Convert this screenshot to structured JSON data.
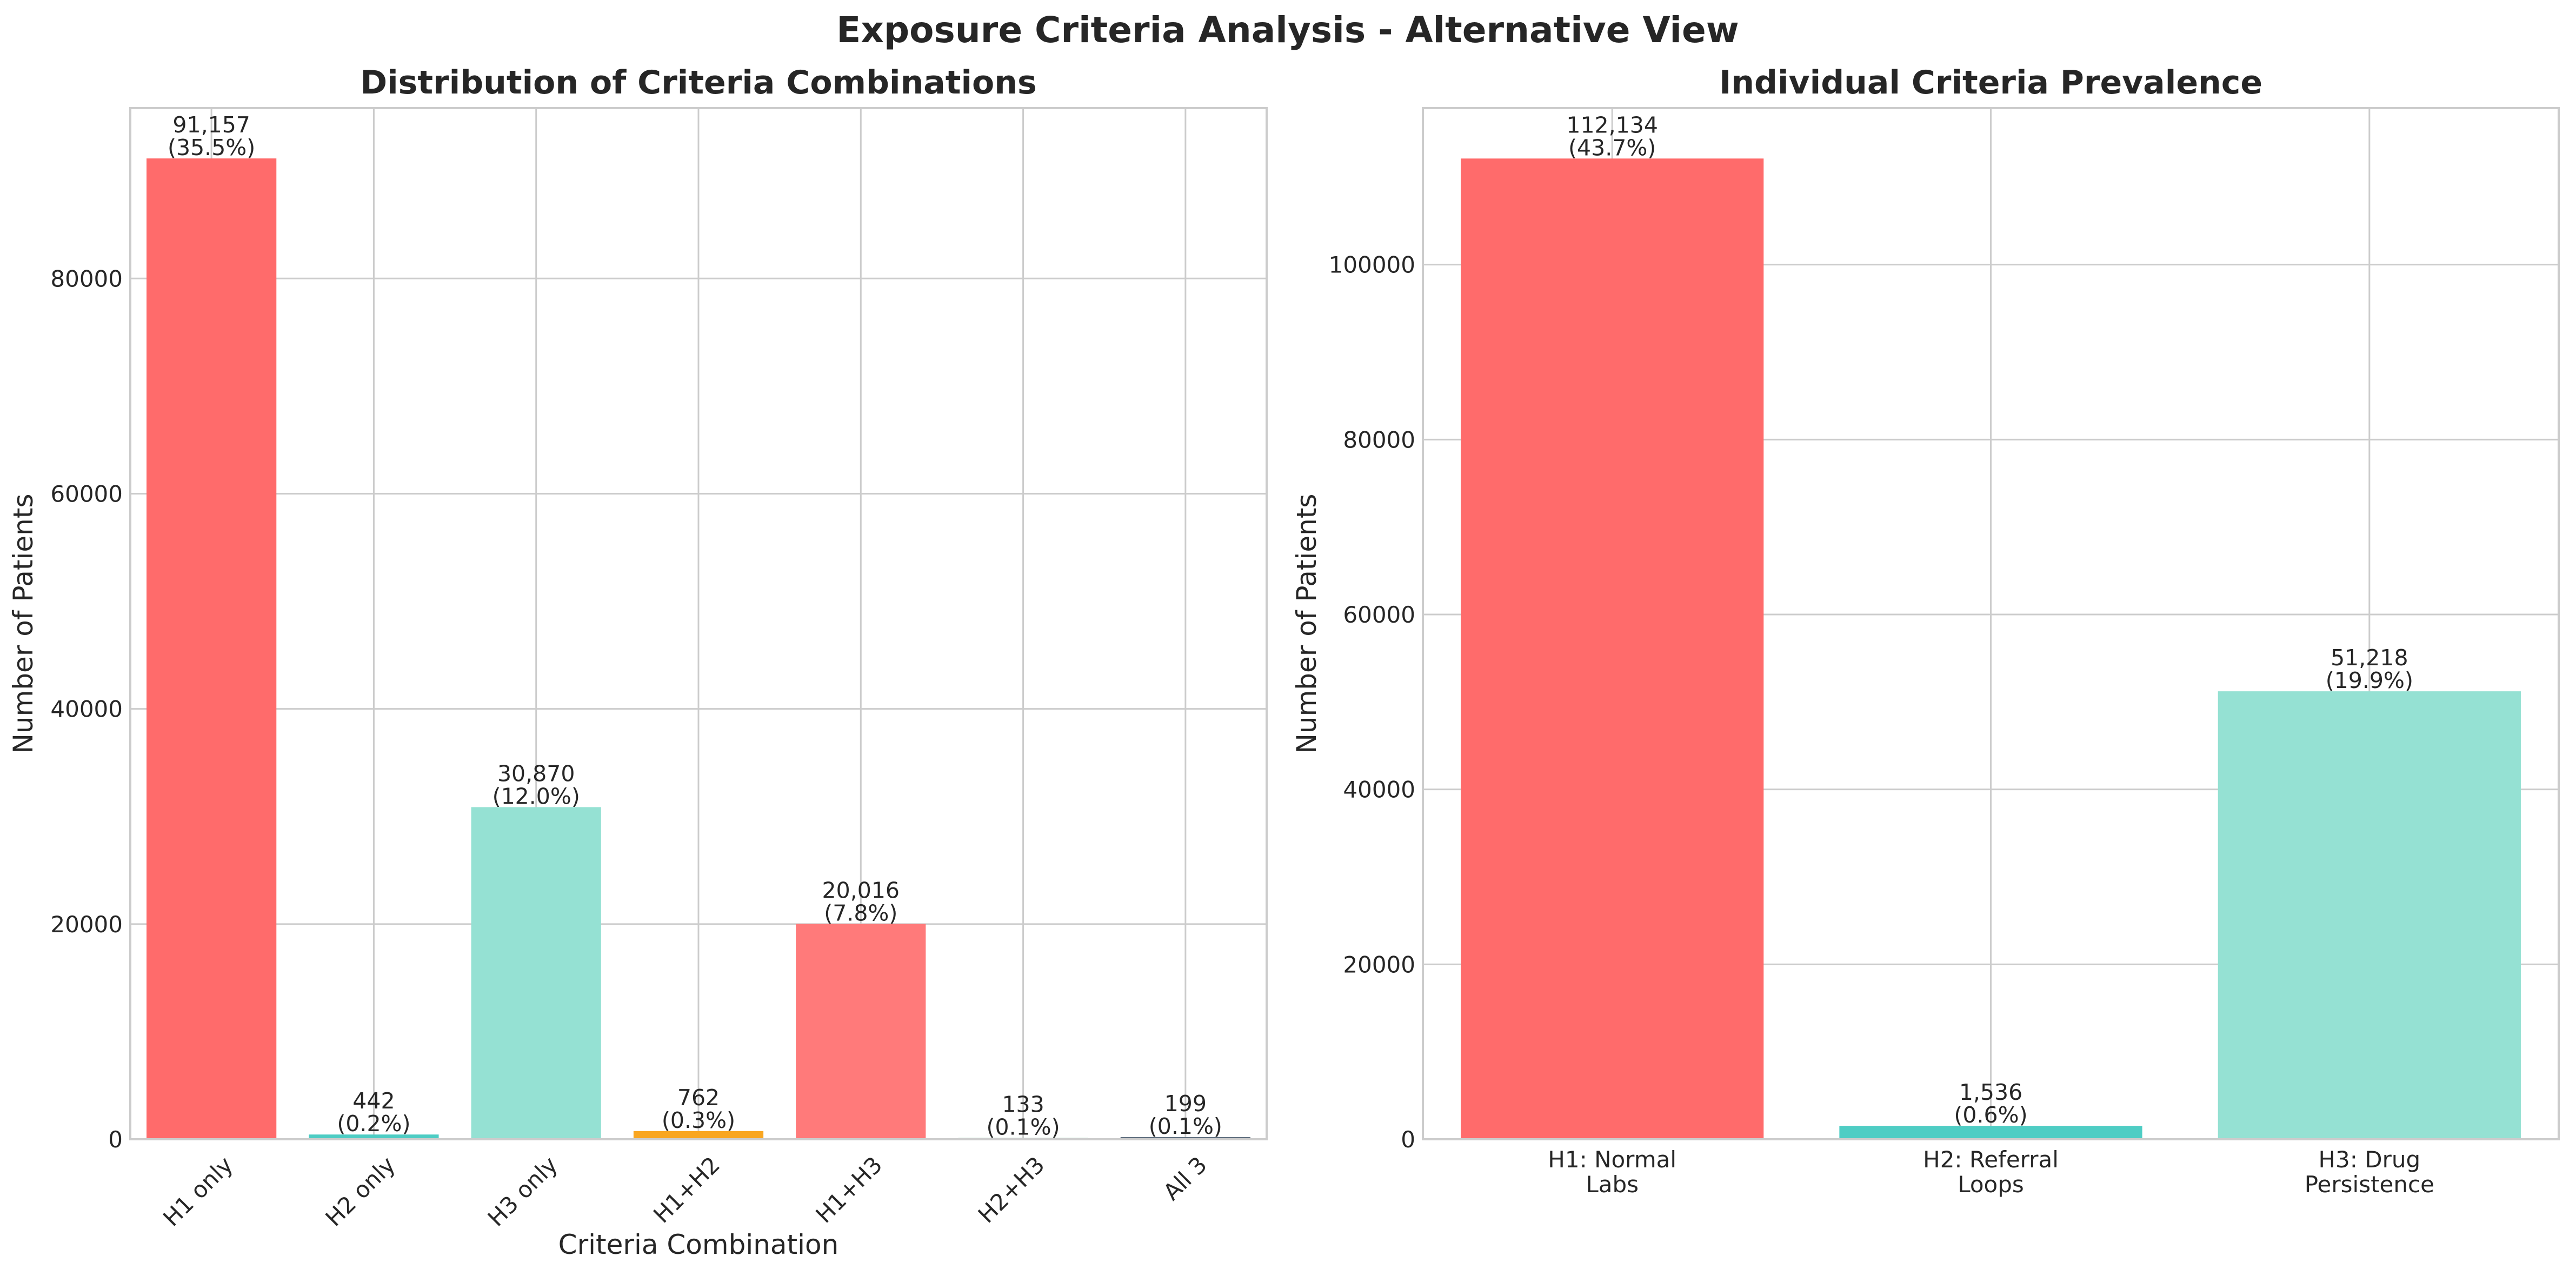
{
  "figure": {
    "suptitle": "Exposure Criteria Analysis - Alternative View"
  },
  "chart_data": [
    {
      "type": "bar",
      "title": "Distribution of Criteria Combinations",
      "xlabel": "Criteria Combination",
      "ylabel": "Number of Patients",
      "categories": [
        "H1 only",
        "H2 only",
        "H3 only",
        "H1+H2",
        "H1+H3",
        "H2+H3",
        "All 3"
      ],
      "values": [
        91157,
        442,
        30870,
        762,
        20016,
        133,
        199
      ],
      "value_labels": [
        "91,157",
        "442",
        "30,870",
        "762",
        "20,016",
        "133",
        "199"
      ],
      "percent_labels": [
        "(35.5%)",
        "(0.2%)",
        "(12.0%)",
        "(0.3%)",
        "(7.8%)",
        "(0.1%)",
        "(0.1%)"
      ],
      "colors": [
        "#ff6b6b",
        "#4ecdc4",
        "#95e1d3",
        "#f9a620",
        "#ff7a7a",
        "#a8d5ba",
        "#5a6b7b"
      ],
      "ylim": [
        0,
        95836
      ],
      "yticks": [
        0,
        20000,
        40000,
        60000,
        80000
      ],
      "xtick_rotation": 45,
      "grid": true
    },
    {
      "type": "bar",
      "title": "Individual Criteria Prevalence",
      "xlabel": "",
      "ylabel": "Number of Patients",
      "categories": [
        [
          "H1: Normal",
          "Labs"
        ],
        [
          "H2: Referral",
          "Loops"
        ],
        [
          "H3: Drug",
          "Persistence"
        ]
      ],
      "values": [
        112134,
        1536,
        51218
      ],
      "value_labels": [
        "112,134",
        "1,536",
        "51,218"
      ],
      "percent_labels": [
        "(43.7%)",
        "(0.6%)",
        "(19.9%)"
      ],
      "colors": [
        "#ff6b6b",
        "#4ecdc4",
        "#95e1d3"
      ],
      "ylim": [
        0,
        117900
      ],
      "yticks": [
        0,
        20000,
        40000,
        60000,
        80000,
        100000
      ],
      "xtick_rotation": 0,
      "grid": true
    }
  ]
}
